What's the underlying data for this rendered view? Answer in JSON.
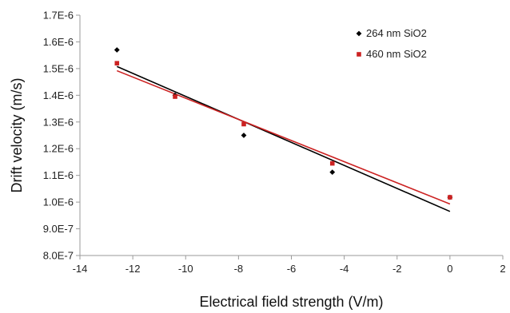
{
  "chart_data": {
    "type": "scatter",
    "title": "",
    "xlabel": "Electrical field strength (V/m)",
    "ylabel": "Drift velocity (m/s)",
    "xlim": [
      -14,
      2
    ],
    "ylim": [
      8e-07,
      1.7e-06
    ],
    "x_ticks": [
      -14,
      -12,
      -10,
      -8,
      -6,
      -4,
      -2,
      0,
      2
    ],
    "x_tick_labels": [
      "-14",
      "-12",
      "-10",
      "-8",
      "-6",
      "-4",
      "-2",
      "0",
      "2"
    ],
    "y_ticks": [
      8e-07,
      9e-07,
      1e-06,
      1.1e-06,
      1.2e-06,
      1.3e-06,
      1.4e-06,
      1.5e-06,
      1.6e-06,
      1.7e-06
    ],
    "y_tick_labels": [
      "8.0E-7",
      "9.0E-7",
      "1.0E-6",
      "1.1E-6",
      "1.2E-6",
      "1.3E-6",
      "1.4E-6",
      "1.5E-6",
      "1.6E-6",
      "1.7E-6"
    ],
    "grid": false,
    "legend_position": "top-right",
    "series": [
      {
        "name": "264 nm SiO2",
        "marker": "diamond",
        "color": "#000000",
        "x": [
          -12.6,
          -10.4,
          -7.8,
          -4.45,
          0.0
        ],
        "y": [
          1.57e-06,
          1.4e-06,
          1.25e-06,
          1.112e-06,
          1.018e-06
        ],
        "trendline": {
          "x": [
            -12.6,
            0.0
          ],
          "y": [
            1.508e-06,
            9.65e-07
          ]
        }
      },
      {
        "name": "460 nm SiO2",
        "marker": "square",
        "color": "#cc2222",
        "x": [
          -12.6,
          -10.4,
          -7.8,
          -4.45,
          0.0
        ],
        "y": [
          1.52e-06,
          1.395e-06,
          1.292e-06,
          1.145e-06,
          1.018e-06
        ],
        "trendline": {
          "x": [
            -12.6,
            0.0
          ],
          "y": [
            1.492e-06,
            9.93e-07
          ]
        }
      }
    ]
  }
}
